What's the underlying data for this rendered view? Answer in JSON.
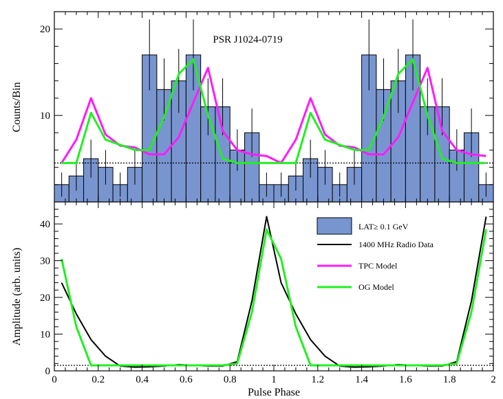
{
  "chart_data": [
    {
      "type": "bar",
      "title": "PSR J1024-0719",
      "xlabel": "",
      "ylabel": "Counts/Bin",
      "xlim": [
        0,
        2
      ],
      "ylim": [
        0,
        22
      ],
      "yticks": [
        10,
        20
      ],
      "bin_width": 0.0667,
      "histogram": {
        "name": "LAT ≥ 0.1 GeV",
        "color": "#7895cf",
        "x_left": [
          0,
          0.0667,
          0.1333,
          0.2,
          0.2667,
          0.3333,
          0.4,
          0.4667,
          0.5333,
          0.6,
          0.6667,
          0.7333,
          0.8,
          0.8667,
          0.9333,
          1.0,
          1.0667,
          1.1333,
          1.2,
          1.2667,
          1.3333,
          1.4,
          1.4667,
          1.5333,
          1.6,
          1.6667,
          1.7333,
          1.8,
          1.8667,
          1.9333
        ],
        "values": [
          2,
          3,
          5,
          4,
          2,
          4,
          17,
          13,
          14,
          17,
          11,
          11,
          6,
          8,
          2,
          2,
          3,
          5,
          4,
          2,
          4,
          17,
          13,
          14,
          17,
          11,
          11,
          6,
          8,
          2
        ],
        "errors": [
          1.4,
          1.7,
          2.2,
          2.0,
          1.4,
          2.0,
          4.1,
          3.6,
          3.7,
          4.1,
          3.3,
          3.3,
          2.4,
          2.8,
          1.4,
          1.4,
          1.7,
          2.2,
          2.0,
          1.4,
          2.0,
          4.1,
          3.6,
          3.7,
          4.1,
          3.3,
          3.3,
          2.4,
          2.8,
          1.4
        ]
      },
      "series": [
        {
          "name": "TPC Model",
          "color": "#ff1aff",
          "x": [
            0.033,
            0.1,
            0.167,
            0.233,
            0.3,
            0.367,
            0.433,
            0.5,
            0.567,
            0.633,
            0.7,
            0.767,
            0.833,
            0.9,
            0.967,
            1.033,
            1.1,
            1.167,
            1.233,
            1.3,
            1.367,
            1.433,
            1.5,
            1.567,
            1.633,
            1.7,
            1.767,
            1.833,
            1.9,
            1.967
          ],
          "values": [
            4.5,
            7.2,
            12,
            7.8,
            6.5,
            6.3,
            5.5,
            5.5,
            7.5,
            11.5,
            15.5,
            8.2,
            6,
            5.5,
            5.3,
            4.5,
            7.2,
            12,
            7.8,
            6.5,
            6.3,
            5.5,
            5.5,
            7.5,
            11.5,
            15.5,
            8.2,
            6,
            5.5,
            5.3
          ]
        },
        {
          "name": "OG Model",
          "color": "#20f020",
          "x": [
            0.033,
            0.1,
            0.167,
            0.233,
            0.3,
            0.367,
            0.433,
            0.5,
            0.567,
            0.633,
            0.7,
            0.767,
            0.833,
            0.9,
            0.967,
            1.033,
            1.1,
            1.167,
            1.233,
            1.3,
            1.367,
            1.433,
            1.5,
            1.567,
            1.633,
            1.7,
            1.767,
            1.833,
            1.9,
            1.967
          ],
          "values": [
            4.5,
            4.5,
            10.3,
            7.2,
            6.6,
            6,
            6,
            9.8,
            14.8,
            16.5,
            10,
            5,
            4.5,
            4.5,
            4.5,
            4.5,
            4.5,
            10.3,
            7.2,
            6.6,
            6,
            6,
            9.8,
            14.8,
            16.5,
            10,
            5,
            4.5,
            4.5,
            4.5
          ]
        }
      ],
      "reference_line": {
        "style": "dotted",
        "value": 4.5
      }
    },
    {
      "type": "line",
      "title": "",
      "xlabel": "Pulse Phase",
      "ylabel": "Amplitude (arb. units)",
      "xlim": [
        0,
        2
      ],
      "ylim": [
        0,
        46
      ],
      "xticks": [
        0,
        0.2,
        0.4,
        0.6,
        0.8,
        1,
        1.2,
        1.4,
        1.6,
        1.8,
        2
      ],
      "xtick_labels": [
        "0",
        "0.2",
        "0.4",
        "0.6",
        "0.8",
        "1",
        "1.2",
        "1.4",
        "1.6",
        "1.8",
        "2"
      ],
      "yticks": [
        0,
        10,
        20,
        30,
        40
      ],
      "series": [
        {
          "name": "1400 MHz Radio Data",
          "color": "#000000",
          "x": [
            0.033,
            0.1,
            0.167,
            0.233,
            0.3,
            0.367,
            0.433,
            0.5,
            0.567,
            0.633,
            0.7,
            0.767,
            0.833,
            0.9,
            0.967,
            1.033,
            1.1,
            1.167,
            1.233,
            1.3,
            1.367,
            1.433,
            1.5,
            1.567,
            1.633,
            1.7,
            1.767,
            1.833,
            1.9,
            1.967
          ],
          "values": [
            24,
            15.5,
            8.5,
            4,
            1.3,
            1,
            1.1,
            1.3,
            1.7,
            1.5,
            1.3,
            1.3,
            2.5,
            19,
            42,
            24,
            15.5,
            8.5,
            4,
            1.3,
            1,
            1.1,
            1.3,
            1.7,
            1.5,
            1.3,
            1.3,
            2.5,
            19,
            42
          ]
        },
        {
          "name": "OG Model",
          "color": "#20f020",
          "x": [
            0.033,
            0.1,
            0.167,
            0.233,
            0.3,
            0.367,
            0.433,
            0.5,
            0.567,
            0.633,
            0.7,
            0.767,
            0.833,
            0.9,
            0.967,
            1.033,
            1.1,
            1.167,
            1.233,
            1.3,
            1.367,
            1.433,
            1.5,
            1.567,
            1.633,
            1.7,
            1.767,
            1.833,
            1.9,
            1.967
          ],
          "values": [
            30.5,
            12,
            1.5,
            1.5,
            1.5,
            1.5,
            1.5,
            1.5,
            1.5,
            1.5,
            1.5,
            1.5,
            2,
            16,
            38.5,
            30.5,
            12,
            1.5,
            1.5,
            1.5,
            1.5,
            1.5,
            1.5,
            1.5,
            1.5,
            1.5,
            1.5,
            2,
            16,
            38.5
          ]
        }
      ],
      "reference_line": {
        "style": "dotted",
        "value": 1.5
      }
    }
  ],
  "legend": {
    "placement": "top-right of lower panel",
    "entries": [
      {
        "label": "LAT≥ 0.1 GeV",
        "kind": "box",
        "color": "#7895cf"
      },
      {
        "label": "1400 MHz Radio Data",
        "kind": "line",
        "color": "#000000"
      },
      {
        "label": "TPC Model",
        "kind": "line",
        "color": "#ff1aff"
      },
      {
        "label": "OG Model",
        "kind": "line",
        "color": "#20f020"
      }
    ]
  }
}
